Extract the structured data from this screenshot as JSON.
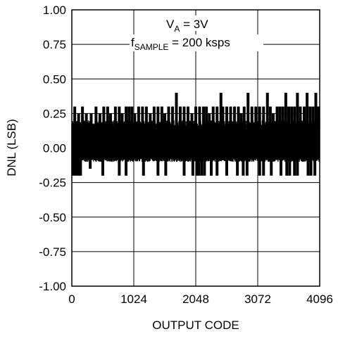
{
  "chart_data": {
    "type": "line",
    "title": "",
    "xlabel": "OUTPUT CODE",
    "ylabel": "DNL (LSB)",
    "xlim": [
      0,
      4096
    ],
    "ylim": [
      -1.0,
      1.0
    ],
    "x_ticks": [
      0,
      1024,
      2048,
      3072,
      4096
    ],
    "x_tick_labels": [
      "0",
      "1024",
      "2048",
      "3072",
      "4096"
    ],
    "y_ticks": [
      1.0,
      0.75,
      0.5,
      0.25,
      0.0,
      -0.25,
      -0.5,
      -0.75,
      -1.0
    ],
    "y_tick_labels": [
      "1.00",
      "0.75",
      "0.50",
      "0.25",
      "0.00",
      "-0.25",
      "-0.50",
      "-0.75",
      "-1.00"
    ],
    "grid": true,
    "annotations": [
      {
        "main": "V",
        "sub": "A",
        "rest": " = 3V"
      },
      {
        "main": "f",
        "sub": "SAMPLE",
        "rest": " = 200 ksps"
      }
    ],
    "series": [
      {
        "color": "#000000",
        "band_low": -0.1,
        "band_high": 0.2,
        "x_step": 16,
        "positive_spikes": [
          [
            48,
            0.3
          ],
          [
            112,
            0.25
          ],
          [
            176,
            0.3
          ],
          [
            240,
            0.25
          ],
          [
            320,
            0.25
          ],
          [
            400,
            0.3
          ],
          [
            464,
            0.25
          ],
          [
            528,
            0.3
          ],
          [
            592,
            0.3
          ],
          [
            640,
            0.25
          ],
          [
            720,
            0.3
          ],
          [
            784,
            0.3
          ],
          [
            832,
            0.25
          ],
          [
            896,
            0.3
          ],
          [
            944,
            0.3
          ],
          [
            992,
            0.3
          ],
          [
            1040,
            0.25
          ],
          [
            1104,
            0.3
          ],
          [
            1168,
            0.3
          ],
          [
            1232,
            0.3
          ],
          [
            1296,
            0.25
          ],
          [
            1360,
            0.3
          ],
          [
            1424,
            0.3
          ],
          [
            1488,
            0.3
          ],
          [
            1536,
            0.25
          ],
          [
            1600,
            0.3
          ],
          [
            1664,
            0.3
          ],
          [
            1728,
            0.4
          ],
          [
            1792,
            0.3
          ],
          [
            1856,
            0.3
          ],
          [
            1920,
            0.3
          ],
          [
            1984,
            0.25
          ],
          [
            2048,
            0.3
          ],
          [
            2112,
            0.3
          ],
          [
            2176,
            0.3
          ],
          [
            2224,
            0.3
          ],
          [
            2272,
            0.25
          ],
          [
            2336,
            0.3
          ],
          [
            2400,
            0.3
          ],
          [
            2464,
            0.4
          ],
          [
            2496,
            0.3
          ],
          [
            2560,
            0.3
          ],
          [
            2624,
            0.3
          ],
          [
            2688,
            0.3
          ],
          [
            2752,
            0.3
          ],
          [
            2800,
            0.25
          ],
          [
            2848,
            0.3
          ],
          [
            2912,
            0.4
          ],
          [
            2976,
            0.3
          ],
          [
            3040,
            0.3
          ],
          [
            3104,
            0.3
          ],
          [
            3168,
            0.3
          ],
          [
            3232,
            0.4
          ],
          [
            3280,
            0.3
          ],
          [
            3328,
            0.25
          ],
          [
            3392,
            0.3
          ],
          [
            3440,
            0.3
          ],
          [
            3488,
            0.3
          ],
          [
            3536,
            0.4
          ],
          [
            3584,
            0.3
          ],
          [
            3632,
            0.3
          ],
          [
            3680,
            0.3
          ],
          [
            3728,
            0.4
          ],
          [
            3776,
            0.3
          ],
          [
            3840,
            0.3
          ],
          [
            3888,
            0.4
          ],
          [
            3936,
            0.3
          ],
          [
            3984,
            0.3
          ],
          [
            4032,
            0.4
          ],
          [
            4064,
            0.3
          ],
          [
            4080,
            0.3
          ]
        ],
        "negative_spikes": [
          [
            16,
            -0.2
          ],
          [
            48,
            -0.2
          ],
          [
            80,
            -0.2
          ],
          [
            112,
            -0.2
          ],
          [
            144,
            -0.2
          ],
          [
            304,
            -0.15
          ],
          [
            512,
            -0.2
          ],
          [
            784,
            -0.2
          ],
          [
            896,
            -0.2
          ],
          [
            1184,
            -0.2
          ],
          [
            1424,
            -0.2
          ],
          [
            1552,
            -0.2
          ],
          [
            1856,
            -0.2
          ],
          [
            2000,
            -0.2
          ],
          [
            2064,
            -0.2
          ],
          [
            2096,
            -0.2
          ],
          [
            2144,
            -0.2
          ],
          [
            2192,
            -0.2
          ],
          [
            2304,
            -0.2
          ],
          [
            2400,
            -0.2
          ],
          [
            2560,
            -0.2
          ],
          [
            2736,
            -0.2
          ],
          [
            2832,
            -0.2
          ],
          [
            2896,
            -0.2
          ],
          [
            3104,
            -0.2
          ],
          [
            3168,
            -0.2
          ],
          [
            3296,
            -0.2
          ],
          [
            3456,
            -0.2
          ],
          [
            3552,
            -0.2
          ],
          [
            3600,
            -0.2
          ],
          [
            3680,
            -0.2
          ],
          [
            3728,
            -0.2
          ],
          [
            3904,
            -0.2
          ],
          [
            3952,
            -0.2
          ],
          [
            4016,
            -0.2
          ]
        ]
      }
    ]
  }
}
